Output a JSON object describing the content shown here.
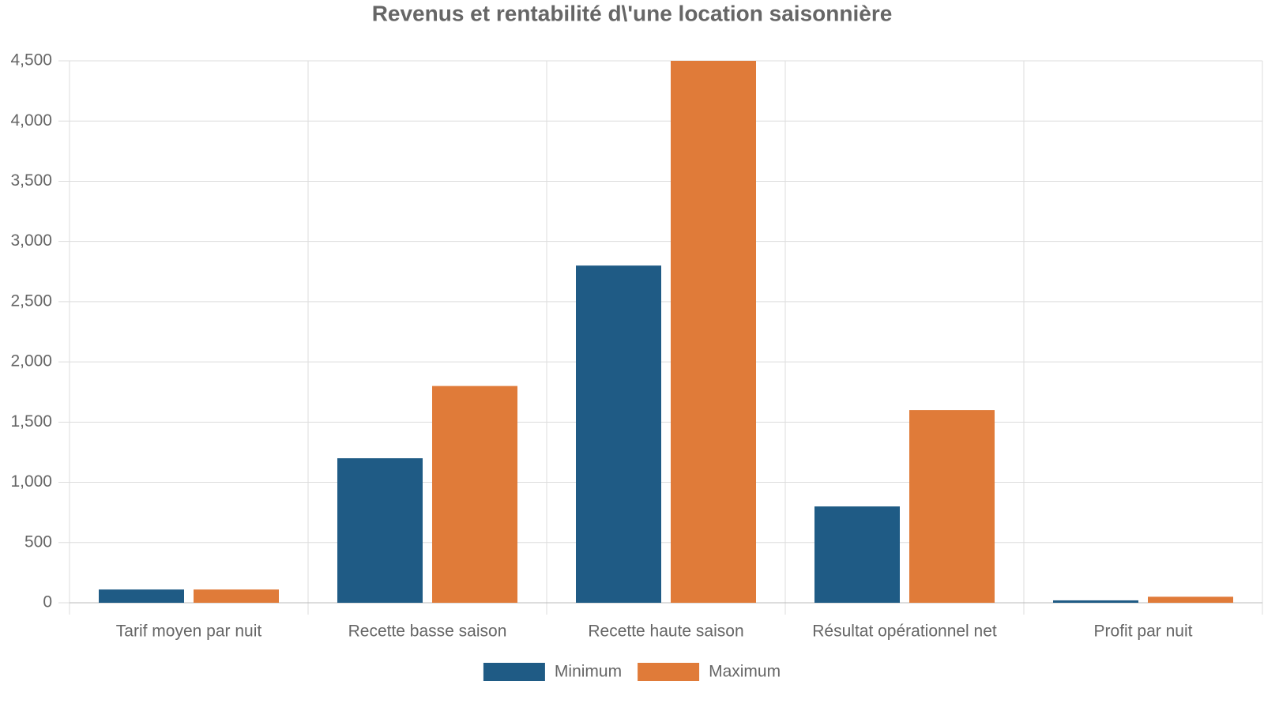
{
  "chart_data": {
    "type": "bar",
    "title": "Revenus et rentabilité d\\'une location saisonnière",
    "categories": [
      "Tarif moyen par nuit",
      "Recette basse saison",
      "Recette haute saison",
      "Résultat opérationnel net",
      "Profit par nuit"
    ],
    "series": [
      {
        "name": "Minimum",
        "color": "#1f5b85",
        "values": [
          110,
          1200,
          2800,
          800,
          20
        ]
      },
      {
        "name": "Maximum",
        "color": "#e07b39",
        "values": [
          110,
          1800,
          4500,
          1600,
          50
        ]
      }
    ],
    "ylim": [
      0,
      4500
    ],
    "yticks": [
      0,
      500,
      {
        "value": 1000,
        "label": "1,000"
      },
      {
        "value": 1500,
        "label": "1,500"
      },
      {
        "value": 2000,
        "label": "2,000"
      },
      {
        "value": 2500,
        "label": "2,500"
      },
      {
        "value": 3000,
        "label": "3,000"
      },
      {
        "value": 3500,
        "label": "3,500"
      },
      {
        "value": 4000,
        "label": "4,000"
      },
      {
        "value": 4500,
        "label": "4,500"
      }
    ],
    "grid": true,
    "legend": "bottom"
  }
}
